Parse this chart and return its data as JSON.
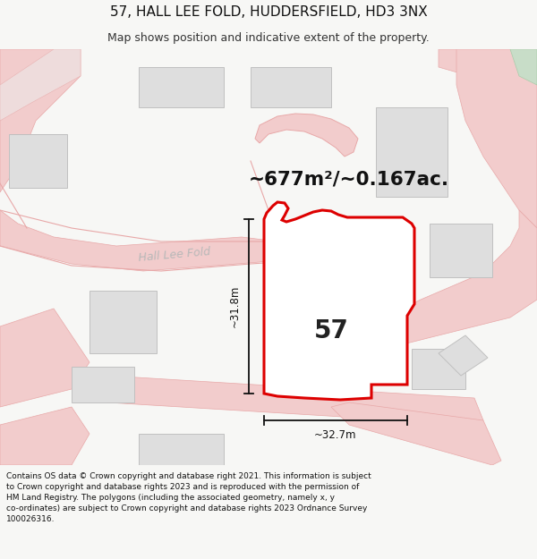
{
  "title": "57, HALL LEE FOLD, HUDDERSFIELD, HD3 3NX",
  "subtitle": "Map shows position and indicative extent of the property.",
  "area_text": "~677m²/~0.167ac.",
  "property_number": "57",
  "dim_horizontal": "~32.7m",
  "dim_vertical": "~31.8m",
  "street_label": "Hall Lee Fold",
  "footer_text": "Contains OS data © Crown copyright and database right 2021. This information is subject to Crown copyright and database rights 2023 and is reproduced with the permission of HM Land Registry. The polygons (including the associated geometry, namely x, y co-ordinates) are subject to Crown copyright and database rights 2023 Ordnance Survey 100026316.",
  "bg_color": "#f7f7f5",
  "map_bg": "#f9f9f7",
  "road_color": "#f2cccc",
  "road_stroke": "#e8a8a8",
  "road_fill_light": "#f9eeee",
  "property_color": "#ffffff",
  "property_edge": "#dd0000",
  "building_color": "#dedede",
  "building_edge": "#c8c8c8",
  "dim_color": "#111111",
  "text_color": "#333333",
  "street_label_color": "#b8b8b8",
  "green_color": "#88cc88"
}
